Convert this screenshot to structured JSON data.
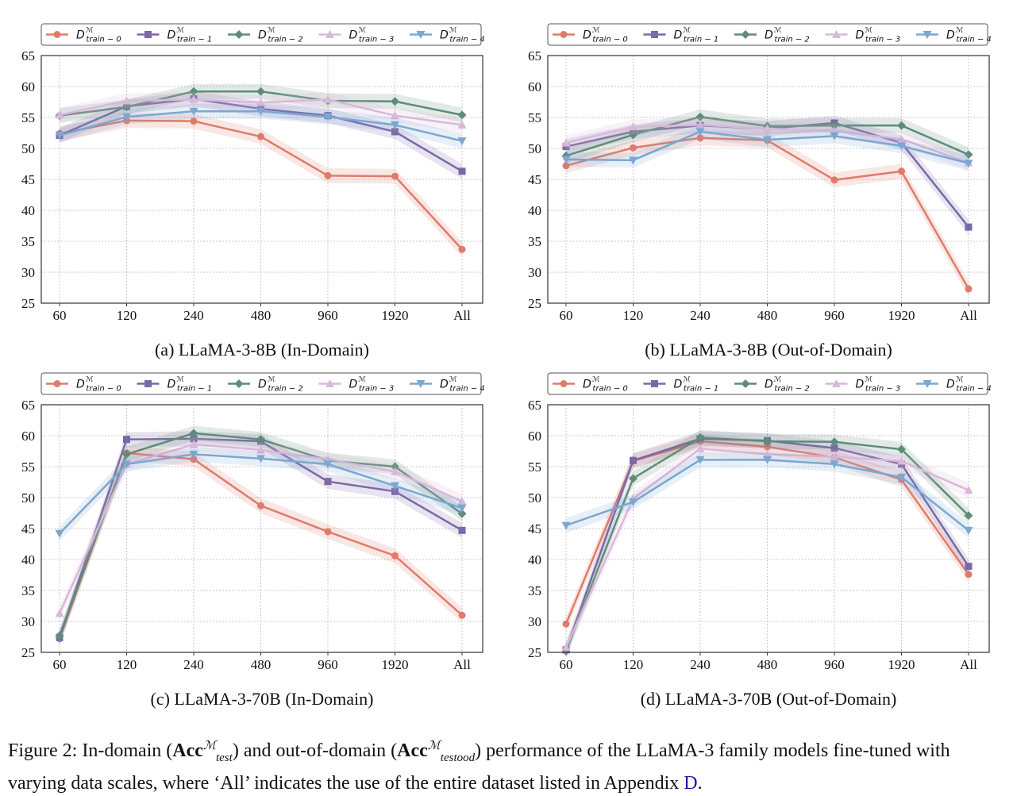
{
  "chart_data": [
    {
      "type": "line",
      "title": "(a) LLaMA-3-8B (In-Domain)",
      "categories": [
        "60",
        "120",
        "240",
        "480",
        "960",
        "1920",
        "All"
      ],
      "ylim": [
        25,
        65
      ],
      "yticks": [
        25,
        30,
        35,
        40,
        45,
        50,
        55,
        60,
        65
      ],
      "grid": true,
      "legend": "top",
      "series": [
        {
          "name": "D_train-0",
          "values": [
            52.4,
            54.5,
            54.4,
            51.9,
            45.6,
            45.5,
            33.7
          ]
        },
        {
          "name": "D_train-1",
          "values": [
            52.1,
            56.8,
            58.0,
            56.4,
            55.3,
            52.7,
            46.3
          ]
        },
        {
          "name": "D_train-2",
          "values": [
            55.3,
            56.7,
            59.2,
            59.2,
            57.7,
            57.6,
            55.4
          ]
        },
        {
          "name": "D_train-3",
          "values": [
            55.4,
            57.7,
            57.9,
            57.4,
            57.9,
            55.3,
            53.8
          ]
        },
        {
          "name": "D_train-4",
          "values": [
            52.1,
            55.1,
            56.0,
            56.0,
            55.1,
            53.8,
            51.2
          ]
        }
      ]
    },
    {
      "type": "line",
      "title": "(b) LLaMA-3-8B (Out-of-Domain)",
      "categories": [
        "60",
        "120",
        "240",
        "480",
        "960",
        "1920",
        "All"
      ],
      "ylim": [
        25,
        65
      ],
      "yticks": [
        25,
        30,
        35,
        40,
        45,
        50,
        55,
        60,
        65
      ],
      "grid": true,
      "legend": "top",
      "series": [
        {
          "name": "D_train-0",
          "values": [
            47.2,
            50.1,
            51.7,
            51.3,
            44.9,
            46.3,
            27.3
          ]
        },
        {
          "name": "D_train-1",
          "values": [
            50.3,
            52.7,
            53.7,
            53.2,
            54.1,
            50.9,
            37.3
          ]
        },
        {
          "name": "D_train-2",
          "values": [
            48.8,
            52.2,
            55.1,
            53.6,
            53.7,
            53.7,
            49.0
          ]
        },
        {
          "name": "D_train-3",
          "values": [
            50.9,
            53.5,
            53.8,
            53.2,
            52.8,
            51.5,
            47.7
          ]
        },
        {
          "name": "D_train-4",
          "values": [
            48.2,
            48.1,
            52.7,
            51.4,
            52.0,
            50.4,
            47.6
          ]
        }
      ]
    },
    {
      "type": "line",
      "title": "(c) LLaMA-3-70B (In-Domain)",
      "categories": [
        "60",
        "120",
        "240",
        "480",
        "960",
        "1920",
        "All"
      ],
      "ylim": [
        25,
        65
      ],
      "yticks": [
        25,
        30,
        35,
        40,
        45,
        50,
        55,
        60,
        65
      ],
      "grid": true,
      "legend": "top",
      "series": [
        {
          "name": "D_train-0",
          "values": [
            27.2,
            57.2,
            56.2,
            48.7,
            44.5,
            40.6,
            31.0
          ]
        },
        {
          "name": "D_train-1",
          "values": [
            27.4,
            59.4,
            59.5,
            59.1,
            52.6,
            51.0,
            44.7
          ]
        },
        {
          "name": "D_train-2",
          "values": [
            27.7,
            57.0,
            60.4,
            59.4,
            56.0,
            55.0,
            47.4
          ]
        },
        {
          "name": "D_train-3",
          "values": [
            31.3,
            55.4,
            58.6,
            57.7,
            56.2,
            54.2,
            49.4
          ]
        },
        {
          "name": "D_train-4",
          "values": [
            44.2,
            55.4,
            57.0,
            56.3,
            55.4,
            51.9,
            48.3
          ]
        }
      ]
    },
    {
      "type": "line",
      "title": "(d) LLaMA-3-70B (Out-of-Domain)",
      "categories": [
        "60",
        "120",
        "240",
        "480",
        "960",
        "1920",
        "All"
      ],
      "ylim": [
        25,
        65
      ],
      "yticks": [
        25,
        30,
        35,
        40,
        45,
        50,
        55,
        60,
        65
      ],
      "grid": true,
      "legend": "top",
      "series": [
        {
          "name": "D_train-0",
          "values": [
            29.6,
            55.9,
            59.1,
            58.2,
            56.5,
            52.9,
            37.6
          ]
        },
        {
          "name": "D_train-1",
          "values": [
            25.4,
            56.0,
            59.5,
            59.2,
            58.0,
            55.4,
            38.9
          ]
        },
        {
          "name": "D_train-2",
          "values": [
            25.2,
            53.1,
            59.7,
            59.1,
            59.0,
            57.8,
            47.1
          ]
        },
        {
          "name": "D_train-3",
          "values": [
            25.8,
            49.8,
            57.9,
            57.0,
            56.6,
            55.9,
            51.2
          ]
        },
        {
          "name": "D_train-4",
          "values": [
            45.5,
            49.3,
            56.1,
            56.1,
            55.4,
            53.3,
            44.7
          ]
        }
      ]
    }
  ],
  "legend_items": [
    {
      "base": "D",
      "sup": "ℳ",
      "sub": "train − 0",
      "color": "#E07B6A",
      "marker": "circle"
    },
    {
      "base": "D",
      "sup": "ℳ",
      "sub": "train − 1",
      "color": "#7B68A6",
      "marker": "square"
    },
    {
      "base": "D",
      "sup": "ℳ",
      "sub": "train − 2",
      "color": "#5E8C7A",
      "marker": "diamond"
    },
    {
      "base": "D",
      "sup": "ℳ",
      "sub": "train − 3",
      "color": "#D9B8DA",
      "marker": "triangle-up"
    },
    {
      "base": "D",
      "sup": "ℳ",
      "sub": "train − 4",
      "color": "#7BA7D1",
      "marker": "triangle-down"
    }
  ],
  "band_halfwidth": 1.2,
  "figure_caption": {
    "p1": "Figure 2: In-domain (",
    "acc": "Acc",
    "sup1": "ℳ",
    "sub1": "test",
    "p2": ") and out-of-domain (",
    "sup2": "ℳ",
    "sub2": "testood",
    "p3": ") performance of the LLaMA-3 family models fine-tuned with varying data scales, where ‘All’ indicates the use of the entire dataset listed in Appendix ",
    "ref": "D",
    "p4": "."
  }
}
